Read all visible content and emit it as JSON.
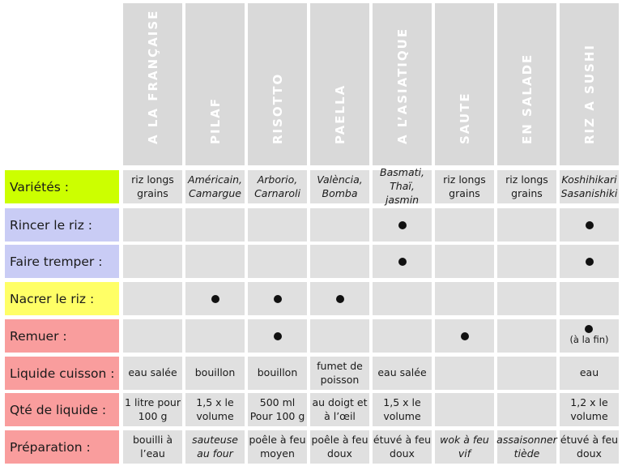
{
  "columns": [
    "A LA FRANÇAISE",
    "PILAF",
    "RISOTTO",
    "PAELLA",
    "A L’ASIATIQUE",
    "SAUTE",
    "EN SALADE",
    "RIZ A SUSHI"
  ],
  "rows": [
    {
      "label": "Variétés :",
      "color": "#ccff00",
      "italic": [
        false,
        true,
        true,
        true,
        true,
        false,
        false,
        true
      ],
      "cells": [
        "riz longs grains",
        "Américain, Camargue",
        "Arborio, Carnaroli",
        "València, Bomba",
        "Basmati, Thaï, jasmin",
        "riz longs grains",
        "riz longs grains",
        "Koshihikari Sasanishiki"
      ]
    },
    {
      "label": "Rincer le riz :",
      "color": "#c9ccf5",
      "dots": [
        false,
        false,
        false,
        false,
        true,
        false,
        false,
        true
      ]
    },
    {
      "label": "Faire tremper :",
      "color": "#c9ccf5",
      "dots": [
        false,
        false,
        false,
        false,
        true,
        false,
        false,
        true
      ]
    },
    {
      "label": "Nacrer le riz :",
      "color": "#ffff66",
      "dots": [
        false,
        true,
        true,
        true,
        false,
        false,
        false,
        false
      ]
    },
    {
      "label": "Remuer :",
      "color": "#f99d9d",
      "dots": [
        false,
        false,
        true,
        false,
        false,
        true,
        false,
        true
      ],
      "note_last": "(à la fin)"
    },
    {
      "label": "Liquide cuisson :",
      "color": "#f99d9d",
      "cells": [
        "eau salée",
        "bouillon",
        "bouillon",
        "fumet de poisson",
        "eau salée",
        "",
        "",
        "eau"
      ]
    },
    {
      "label": "Qté de liquide :",
      "color": "#f99d9d",
      "cells": [
        "1 litre pour 100 g",
        "1,5 x le volume",
        "500 ml Pour 100 g",
        "au doigt et à l’œil",
        "1,5 x le volume",
        "",
        "",
        "1,2 x le volume"
      ]
    },
    {
      "label": "Préparation :",
      "color": "#f99d9d",
      "italic": [
        false,
        true,
        false,
        false,
        false,
        true,
        true,
        false
      ],
      "cells": [
        "bouilli à l’eau",
        "sauteuse au four",
        "poêle à feu moyen",
        "poêle à feu doux",
        "étuvé à feu doux",
        "wok à feu vif",
        "assaisonner tiède",
        "étuvé à feu doux"
      ]
    }
  ]
}
